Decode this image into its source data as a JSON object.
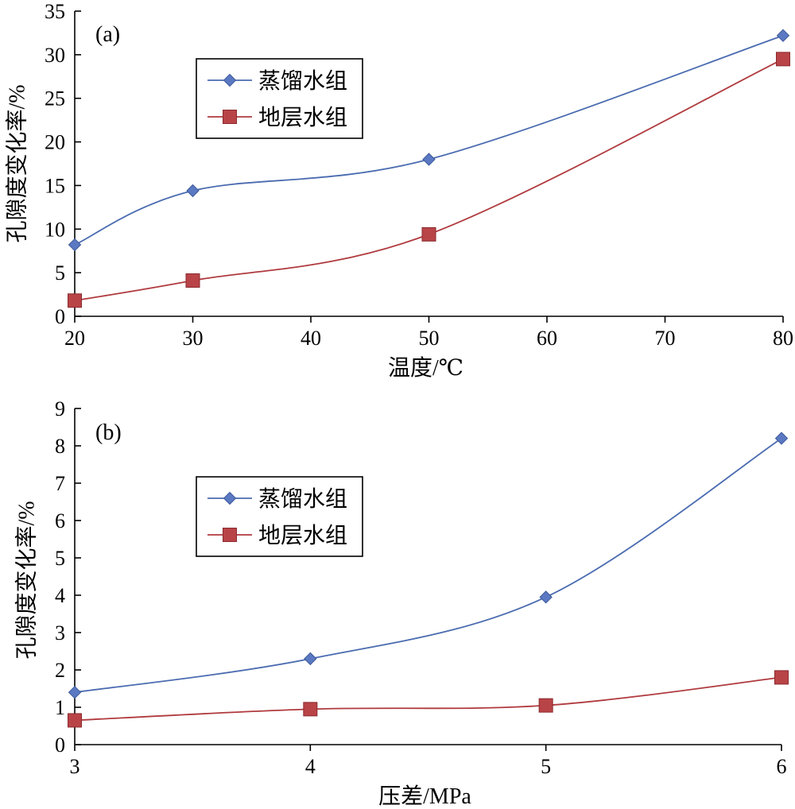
{
  "chart_data": [
    {
      "type": "line",
      "panel_label": "(a)",
      "xlabel": "温度/℃",
      "ylabel": "孔隙度变化率/%",
      "x": [
        20,
        30,
        50,
        80
      ],
      "xlim": [
        20,
        80
      ],
      "ylim": [
        0,
        35
      ],
      "xticks": [
        "20",
        "30",
        "40",
        "50",
        "60",
        "70",
        "80"
      ],
      "yticks": [
        "0",
        "5",
        "10",
        "15",
        "20",
        "25",
        "30",
        "35"
      ],
      "legend_position": "upper-left",
      "grid": false,
      "series": [
        {
          "name": "蒸馏水组",
          "values": [
            8.2,
            14.4,
            18.0,
            32.2
          ],
          "color": "#4a6bb0",
          "marker": "diamond",
          "marker_color": "#5b79c2"
        },
        {
          "name": "地层水组",
          "values": [
            1.8,
            4.1,
            9.4,
            29.5
          ],
          "color": "#b03a3e",
          "marker": "square",
          "marker_color": "#b94448"
        }
      ]
    },
    {
      "type": "line",
      "panel_label": "(b)",
      "xlabel": "压差/MPa",
      "ylabel": "孔隙度变化率/%",
      "x": [
        3,
        4,
        5,
        6
      ],
      "xlim": [
        3,
        6
      ],
      "ylim": [
        0,
        9
      ],
      "xticks": [
        "3",
        "4",
        "5",
        "6"
      ],
      "yticks": [
        "0",
        "1",
        "2",
        "3",
        "4",
        "5",
        "6",
        "7",
        "8",
        "9"
      ],
      "legend_position": "upper-left",
      "grid": false,
      "series": [
        {
          "name": "蒸馏水组",
          "values": [
            1.4,
            2.3,
            3.95,
            8.2
          ],
          "color": "#4a6bb0",
          "marker": "diamond",
          "marker_color": "#5b79c2"
        },
        {
          "name": "地层水组",
          "values": [
            0.65,
            0.95,
            1.05,
            1.8
          ],
          "color": "#b03a3e",
          "marker": "square",
          "marker_color": "#b94448"
        }
      ]
    }
  ]
}
